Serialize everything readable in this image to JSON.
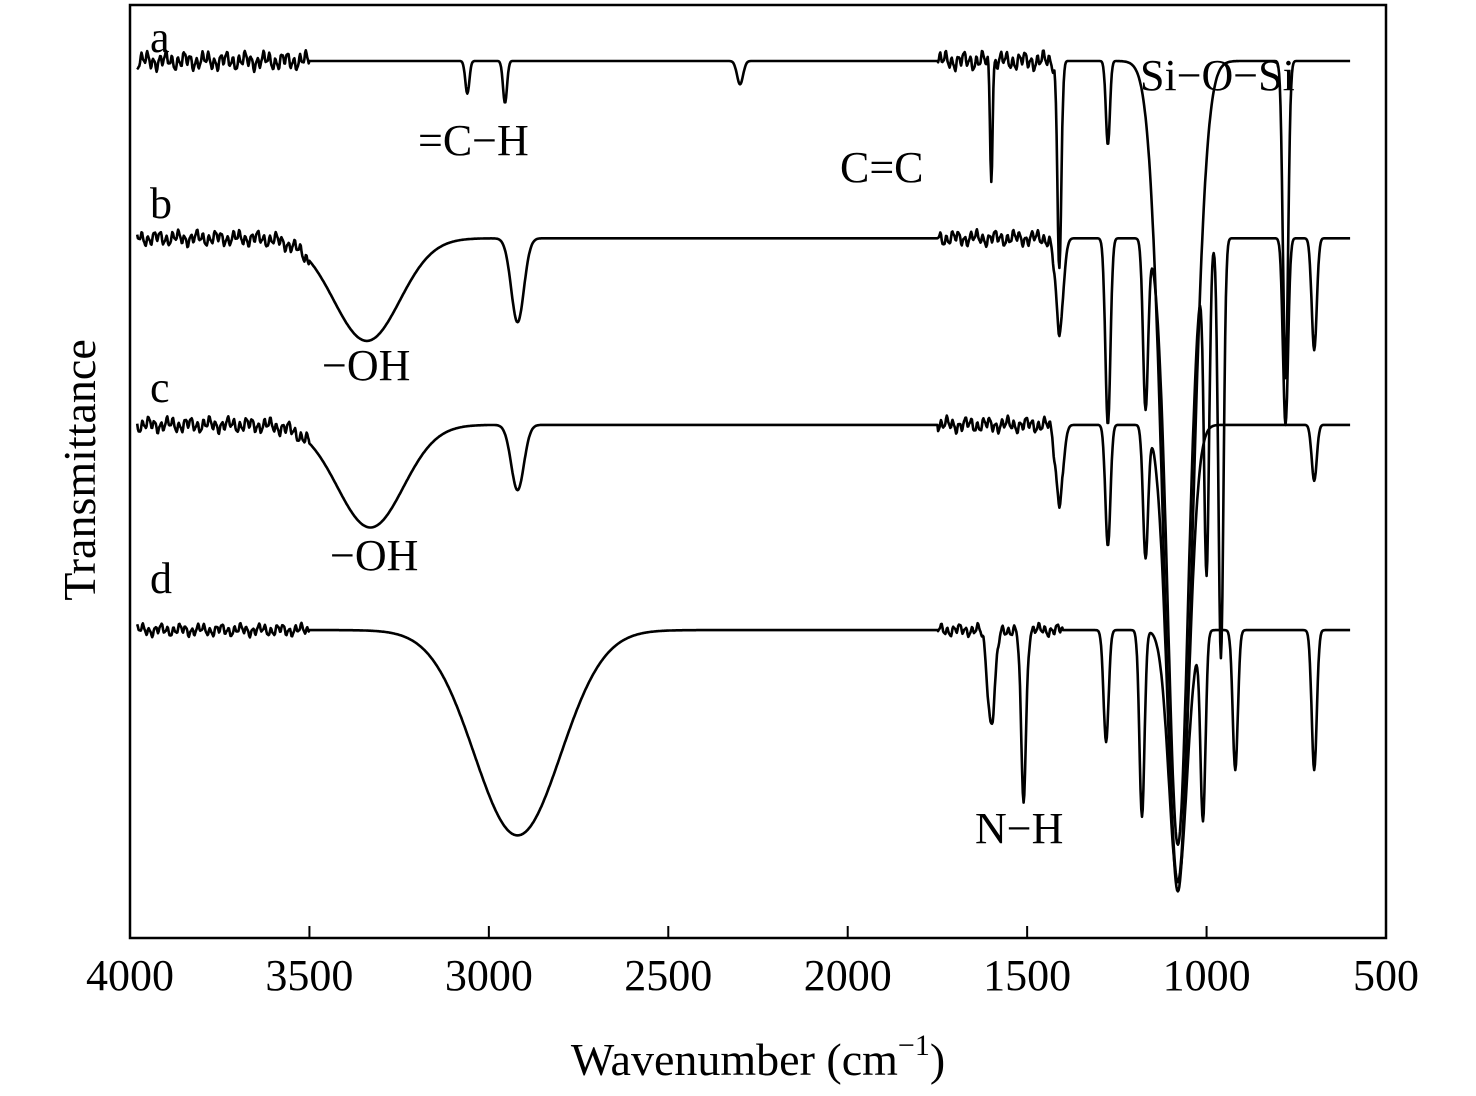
{
  "chart_data": {
    "type": "line",
    "xlabel": "Wavenumber (cm",
    "xlabel_sup": "−1",
    "xlabel_end": ")",
    "ylabel": "Transmittance",
    "xlim": [
      4000,
      500
    ],
    "x_reversed": true,
    "y_ticks_shown": false,
    "grid": false,
    "x_ticks": [
      {
        "value": 4000,
        "label": "4000"
      },
      {
        "value": 3500,
        "label": "3500"
      },
      {
        "value": 3000,
        "label": "3000"
      },
      {
        "value": 2500,
        "label": "2500"
      },
      {
        "value": 2000,
        "label": "2000"
      },
      {
        "value": 1500,
        "label": "1500"
      },
      {
        "value": 1000,
        "label": "1000"
      },
      {
        "value": 500,
        "label": "500"
      }
    ],
    "series": [
      {
        "name": "a",
        "baseline": 0.06,
        "noise": 0.012,
        "features": [
          {
            "x": 3060,
            "depth": 0.035,
            "width": 8
          },
          {
            "x": 2955,
            "depth": 0.045,
            "width": 8
          },
          {
            "x": 2300,
            "depth": 0.025,
            "width": 12
          },
          {
            "x": 1600,
            "depth": 0.12,
            "width": 5
          },
          {
            "x": 1410,
            "depth": 0.22,
            "width": 8
          },
          {
            "x": 1275,
            "depth": 0.09,
            "width": 8
          },
          {
            "x": 1080,
            "depth": 0.88,
            "width": 55
          },
          {
            "x": 780,
            "depth": 0.34,
            "width": 10
          }
        ]
      },
      {
        "name": "b",
        "baseline": 0.25,
        "noise": 0.01,
        "features": [
          {
            "x": 3340,
            "depth": 0.11,
            "width": 130
          },
          {
            "x": 2920,
            "depth": 0.09,
            "width": 25
          },
          {
            "x": 1410,
            "depth": 0.1,
            "width": 15
          },
          {
            "x": 1275,
            "depth": 0.2,
            "width": 10
          },
          {
            "x": 1170,
            "depth": 0.18,
            "width": 10
          },
          {
            "x": 1080,
            "depth": 0.65,
            "width": 40
          },
          {
            "x": 1000,
            "depth": 0.35,
            "width": 10
          },
          {
            "x": 960,
            "depth": 0.45,
            "width": 10
          },
          {
            "x": 780,
            "depth": 0.2,
            "width": 10
          },
          {
            "x": 700,
            "depth": 0.12,
            "width": 10
          }
        ]
      },
      {
        "name": "c",
        "baseline": 0.45,
        "noise": 0.01,
        "features": [
          {
            "x": 3330,
            "depth": 0.11,
            "width": 130
          },
          {
            "x": 2920,
            "depth": 0.07,
            "width": 25
          },
          {
            "x": 1410,
            "depth": 0.08,
            "width": 15
          },
          {
            "x": 1275,
            "depth": 0.13,
            "width": 10
          },
          {
            "x": 1170,
            "depth": 0.14,
            "width": 10
          },
          {
            "x": 1080,
            "depth": 0.5,
            "width": 40
          },
          {
            "x": 700,
            "depth": 0.06,
            "width": 10
          }
        ]
      },
      {
        "name": "d",
        "baseline": 0.67,
        "noise": 0.008,
        "features": [
          {
            "x": 2920,
            "depth": 0.22,
            "width": 170
          },
          {
            "x": 1600,
            "depth": 0.1,
            "width": 15
          },
          {
            "x": 1510,
            "depth": 0.18,
            "width": 10
          },
          {
            "x": 1280,
            "depth": 0.12,
            "width": 10
          },
          {
            "x": 1180,
            "depth": 0.2,
            "width": 10
          },
          {
            "x": 1080,
            "depth": 0.27,
            "width": 35
          },
          {
            "x": 1010,
            "depth": 0.2,
            "width": 10
          },
          {
            "x": 920,
            "depth": 0.15,
            "width": 10
          },
          {
            "x": 700,
            "depth": 0.15,
            "width": 10
          }
        ]
      }
    ],
    "series_labels": [
      "a",
      "b",
      "c",
      "d"
    ],
    "annotations": [
      {
        "text": "=C−H",
        "x": 3060
      },
      {
        "text": "C=C",
        "x": 1600
      },
      {
        "text": "Si−O−Si",
        "x": 1080
      },
      {
        "text": "−OH",
        "x": 3340
      },
      {
        "text": "−OH",
        "x": 3330
      },
      {
        "text": "N−H",
        "x": 1510
      }
    ]
  }
}
